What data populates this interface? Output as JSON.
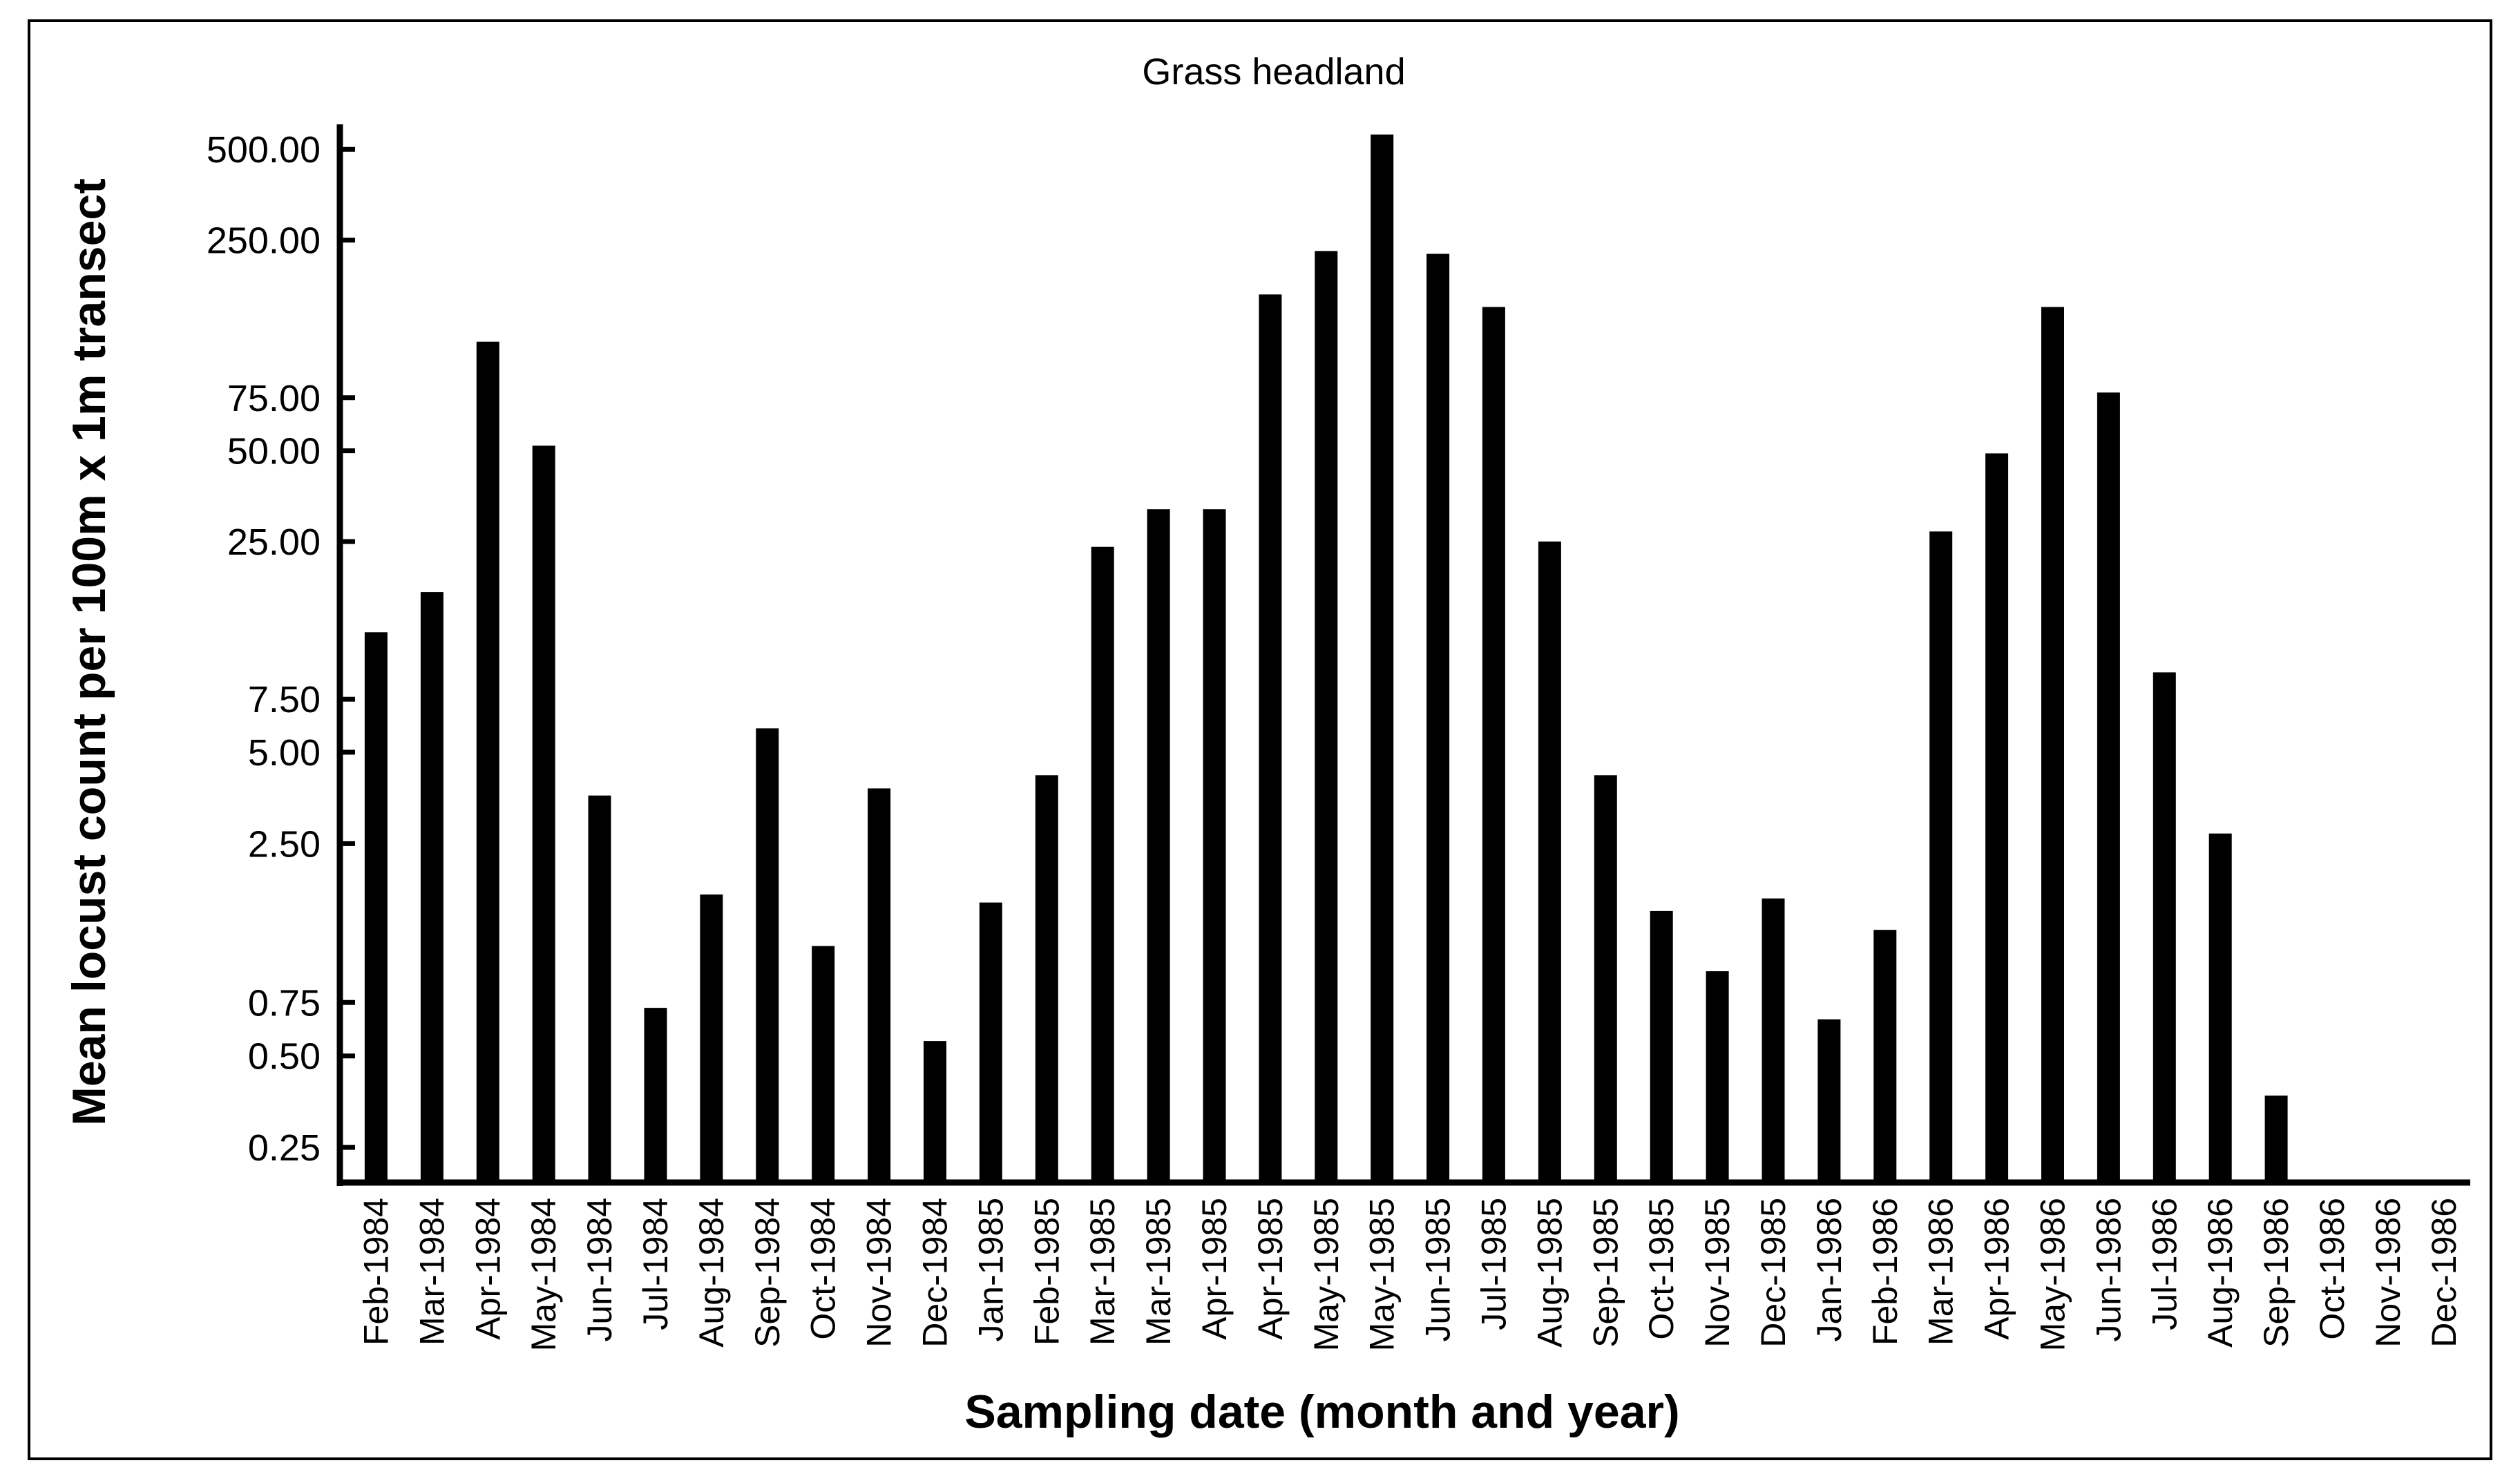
{
  "chart_data": {
    "type": "bar",
    "title": "Grass headland",
    "xlabel": "Sampling date (month and year)",
    "ylabel": "Mean locust count per 100m x 1m transect",
    "y_scale": "log",
    "yticks": [
      "500.00",
      "250.00",
      "75.00",
      "50.00",
      "25.00",
      "7.50",
      "5.00",
      "2.50",
      "0.75",
      "0.50",
      "0.25"
    ],
    "ylim": [
      0.16,
      600
    ],
    "grid": false,
    "legend": "none",
    "bar_color": "#000000",
    "categories": [
      "Feb-1984",
      "Mar-1984",
      "Apr-1984",
      "May-1984",
      "Jun-1984",
      "Jul-1984",
      "Aug-1984",
      "Sep-1984",
      "Oct-1984",
      "Nov-1984",
      "Dec-1984",
      "Jan-1985",
      "Feb-1985",
      "Mar-1985",
      "Mar-1985",
      "Apr-1985",
      "Apr-1985",
      "May-1985",
      "May-1985",
      "Jun-1985",
      "Jul-1985",
      "Aug-1985",
      "Sep-1985",
      "Oct-1985",
      "Nov-1985",
      "Dec-1985",
      "Jan-1986",
      "Feb-1986",
      "Mar-1986",
      "Apr-1986",
      "May-1986",
      "Jun-1986",
      "Jul-1986",
      "Aug-1986",
      "Sep-1986",
      "Oct-1986",
      "Nov-1986",
      "Dec-1986"
    ],
    "values": [
      12.5,
      17,
      115,
      52,
      3.6,
      0.72,
      1.7,
      6,
      1.15,
      3.8,
      0.56,
      1.6,
      4.2,
      24,
      32,
      32,
      165,
      230,
      560,
      225,
      150,
      25,
      4.2,
      1.5,
      0.95,
      1.65,
      0.66,
      1.3,
      27,
      49,
      150,
      78,
      9.2,
      2.7,
      0.37,
      0,
      0.16,
      0
    ]
  }
}
